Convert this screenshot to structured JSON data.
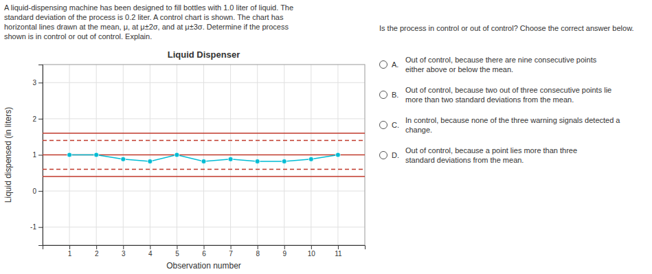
{
  "chart_data": {
    "type": "line",
    "title": "Liquid Dispenser",
    "x_label": "Observation number",
    "y_label": "Liquid dispensed (in liters)",
    "x": [
      1,
      2,
      3,
      4,
      5,
      6,
      7,
      8,
      9,
      10,
      11
    ],
    "values": [
      1.0,
      1.0,
      0.88,
      0.82,
      1.0,
      0.82,
      0.88,
      0.82,
      0.82,
      0.88,
      1.0
    ],
    "color": "#00bcd4",
    "marker": "circle",
    "control_lines": [
      {
        "value": 1.0,
        "line_style": "solid",
        "color": "#c0392b"
      },
      {
        "value": 1.6,
        "line_style": "solid",
        "color": "#c0392b"
      },
      {
        "value": 0.4,
        "line_style": "solid",
        "color": "#c0392b"
      },
      {
        "value": 1.4,
        "line_style": "dashed",
        "color": "#c0392b"
      },
      {
        "value": 0.6,
        "line_style": "dashed",
        "color": "#c0392b"
      }
    ],
    "xlim": [
      0,
      12
    ],
    "xticks": [
      1,
      2,
      3,
      4,
      5,
      6,
      7,
      8,
      9,
      10,
      11
    ],
    "ylim": [
      -1.5,
      3.5
    ],
    "yticks": [
      -1,
      0,
      1,
      2,
      3
    ],
    "grid": true,
    "annotations": {
      "description": "A liquid-dispensing machine has been designed to fill bottles with 1.0 liter of liquid. The\nstandard deviation of the process is 0.2 liter. A control chart is shown. The chart has\nhorizontal lines drawn at the mean, μ, at μ±2σ, and at μ±3σ. Determine if the process\nshown is in control or out of control. Explain.",
      "question": "Is the process in control or out of control? Choose the correct answer below.",
      "choices": [
        {
          "letter": "A.",
          "text": "Out of control, because there are nine consecutive points\neither above or below the mean."
        },
        {
          "letter": "B.",
          "text": "Out of control, because two out of three consecutive points lie\nmore than two standard deviations from the mean."
        },
        {
          "letter": "C.",
          "text": "In control, because none of the three warning signals detected a change."
        },
        {
          "letter": "D.",
          "text": "Out of control, because a point lies more than three\nstandard deviations from the mean."
        }
      ]
    }
  }
}
